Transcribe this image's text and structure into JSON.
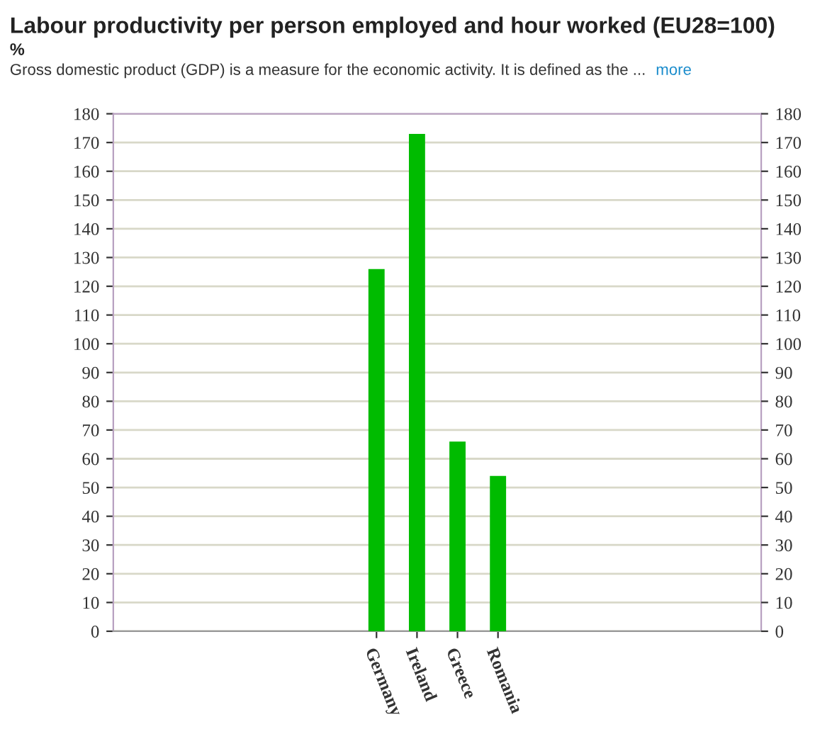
{
  "chart_data": {
    "type": "bar",
    "title": "Labour productivity per person employed and hour worked (EU28=100)",
    "subtitle": "%",
    "annotations": [
      "Gross domestic product (GDP) is a measure for the economic activity. It is defined as the ...",
      "more"
    ],
    "categories": [
      null,
      null,
      null,
      null,
      null,
      null,
      "Germany",
      "Ireland",
      "Greece",
      "Romania",
      null,
      null,
      null,
      null,
      null,
      null
    ],
    "values": [
      null,
      null,
      null,
      null,
      null,
      null,
      126,
      173,
      66,
      54,
      null,
      null,
      null,
      null,
      null,
      null
    ],
    "color": "#00bb00",
    "ylim": [
      0,
      180
    ],
    "yticks": [
      0,
      10,
      20,
      30,
      40,
      50,
      60,
      70,
      80,
      90,
      100,
      110,
      120,
      130,
      140,
      150,
      160,
      170,
      180
    ],
    "y2lim": [
      0,
      180
    ],
    "y2ticks": [
      0,
      10,
      20,
      30,
      40,
      50,
      60,
      70,
      80,
      90,
      100,
      110,
      120,
      130,
      140,
      150,
      160,
      170,
      180
    ],
    "grid": "y",
    "legend": false
  }
}
